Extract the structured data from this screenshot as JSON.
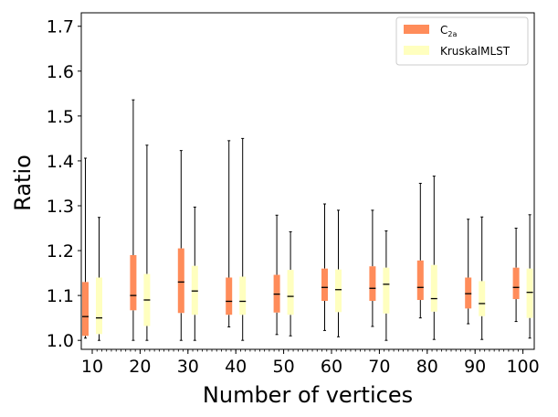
{
  "chart_data": {
    "type": "boxplot",
    "title": "",
    "xlabel": "Number of vertices",
    "ylabel": "Ratio",
    "ylim": [
      0.98,
      1.73
    ],
    "yticks": [
      1.0,
      1.1,
      1.2,
      1.3,
      1.4,
      1.5,
      1.6,
      1.7
    ],
    "ytick_labels": [
      "1.0",
      "1.1",
      "1.2",
      "1.3",
      "1.4",
      "1.5",
      "1.6",
      "1.7"
    ],
    "categories": [
      "10",
      "20",
      "30",
      "40",
      "50",
      "60",
      "70",
      "80",
      "90",
      "100"
    ],
    "legend_position": "top-right",
    "series": [
      {
        "name": "C",
        "name_sub": "2a",
        "color": "#ff8c5a",
        "boxes": [
          {
            "whislo": 1.005,
            "q1": 1.01,
            "med": 1.053,
            "q3": 1.13,
            "whishi": 1.406
          },
          {
            "whislo": 1.0,
            "q1": 1.067,
            "med": 1.1,
            "q3": 1.19,
            "whishi": 1.536
          },
          {
            "whislo": 1.0,
            "q1": 1.061,
            "med": 1.13,
            "q3": 1.205,
            "whishi": 1.423
          },
          {
            "whislo": 1.03,
            "q1": 1.057,
            "med": 1.087,
            "q3": 1.14,
            "whishi": 1.445
          },
          {
            "whislo": 1.013,
            "q1": 1.062,
            "med": 1.103,
            "q3": 1.146,
            "whishi": 1.279
          },
          {
            "whislo": 1.022,
            "q1": 1.088,
            "med": 1.118,
            "q3": 1.16,
            "whishi": 1.304
          },
          {
            "whislo": 1.031,
            "q1": 1.088,
            "med": 1.116,
            "q3": 1.165,
            "whishi": 1.29
          },
          {
            "whislo": 1.05,
            "q1": 1.09,
            "med": 1.118,
            "q3": 1.178,
            "whishi": 1.35
          },
          {
            "whislo": 1.037,
            "q1": 1.071,
            "med": 1.104,
            "q3": 1.14,
            "whishi": 1.27
          },
          {
            "whislo": 1.042,
            "q1": 1.092,
            "med": 1.118,
            "q3": 1.162,
            "whishi": 1.25
          }
        ]
      },
      {
        "name": "KruskalMLST",
        "color": "#ffffbf",
        "boxes": [
          {
            "whislo": 1.0,
            "q1": 1.014,
            "med": 1.05,
            "q3": 1.14,
            "whishi": 1.274
          },
          {
            "whislo": 1.0,
            "q1": 1.032,
            "med": 1.09,
            "q3": 1.148,
            "whishi": 1.435
          },
          {
            "whislo": 1.0,
            "q1": 1.057,
            "med": 1.11,
            "q3": 1.166,
            "whishi": 1.297
          },
          {
            "whislo": 1.0,
            "q1": 1.057,
            "med": 1.087,
            "q3": 1.142,
            "whishi": 1.45
          },
          {
            "whislo": 1.01,
            "q1": 1.057,
            "med": 1.098,
            "q3": 1.157,
            "whishi": 1.242
          },
          {
            "whislo": 1.008,
            "q1": 1.063,
            "med": 1.113,
            "q3": 1.158,
            "whishi": 1.29
          },
          {
            "whislo": 1.0,
            "q1": 1.06,
            "med": 1.125,
            "q3": 1.162,
            "whishi": 1.244
          },
          {
            "whislo": 1.002,
            "q1": 1.064,
            "med": 1.093,
            "q3": 1.168,
            "whishi": 1.366
          },
          {
            "whislo": 1.002,
            "q1": 1.054,
            "med": 1.082,
            "q3": 1.132,
            "whishi": 1.275
          },
          {
            "whislo": 1.005,
            "q1": 1.05,
            "med": 1.107,
            "q3": 1.16,
            "whishi": 1.28
          }
        ]
      }
    ]
  }
}
